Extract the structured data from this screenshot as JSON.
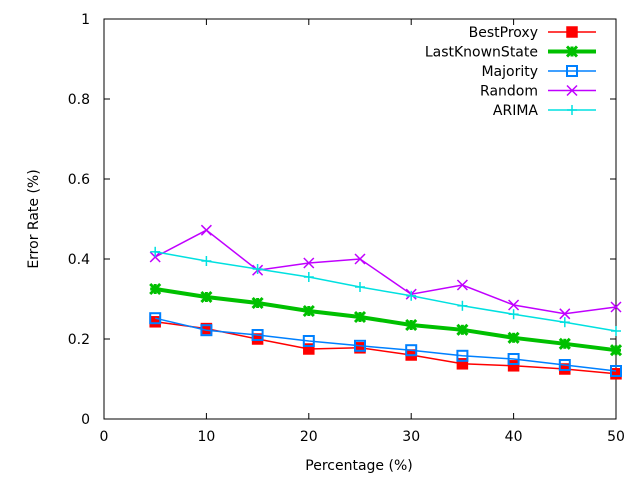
{
  "chart_data": {
    "type": "line",
    "title": "",
    "xlabel": "Percentage (%)",
    "ylabel": "Error Rate (%)",
    "xlim": [
      0,
      50
    ],
    "ylim": [
      0,
      1
    ],
    "xticks": [
      0,
      10,
      20,
      30,
      40,
      50
    ],
    "yticks": [
      0,
      0.2,
      0.4,
      0.6,
      0.8,
      1
    ],
    "xtick_labels": [
      "0",
      "10",
      "20",
      "30",
      "40",
      "50"
    ],
    "ytick_labels": [
      "0",
      "0.2",
      "0.4",
      "0.6",
      "0.8",
      "1"
    ],
    "grid": false,
    "legend_position": "top-right",
    "x": [
      5,
      10,
      15,
      20,
      25,
      30,
      35,
      40,
      45,
      50
    ],
    "series": [
      {
        "name": "BestProxy",
        "color": "#ff0000",
        "marker": "filled-square",
        "values": [
          0.243,
          0.226,
          0.2,
          0.175,
          0.178,
          0.16,
          0.138,
          0.133,
          0.125,
          0.113
        ]
      },
      {
        "name": "LastKnownState",
        "color": "#00c000",
        "marker": "asterisk",
        "values": [
          0.325,
          0.305,
          0.29,
          0.27,
          0.255,
          0.235,
          0.223,
          0.203,
          0.188,
          0.172
        ]
      },
      {
        "name": "Majority",
        "color": "#0080ff",
        "marker": "open-square",
        "values": [
          0.252,
          0.222,
          0.21,
          0.195,
          0.183,
          0.172,
          0.158,
          0.15,
          0.135,
          0.12
        ]
      },
      {
        "name": "Random",
        "color": "#c000ff",
        "marker": "x",
        "values": [
          0.405,
          0.472,
          0.372,
          0.39,
          0.4,
          0.312,
          0.335,
          0.285,
          0.263,
          0.28
        ]
      },
      {
        "name": "ARIMA",
        "color": "#00e0e0",
        "marker": "plus",
        "values": [
          0.418,
          0.395,
          0.375,
          0.355,
          0.33,
          0.308,
          0.283,
          0.262,
          0.242,
          0.22
        ]
      }
    ]
  }
}
